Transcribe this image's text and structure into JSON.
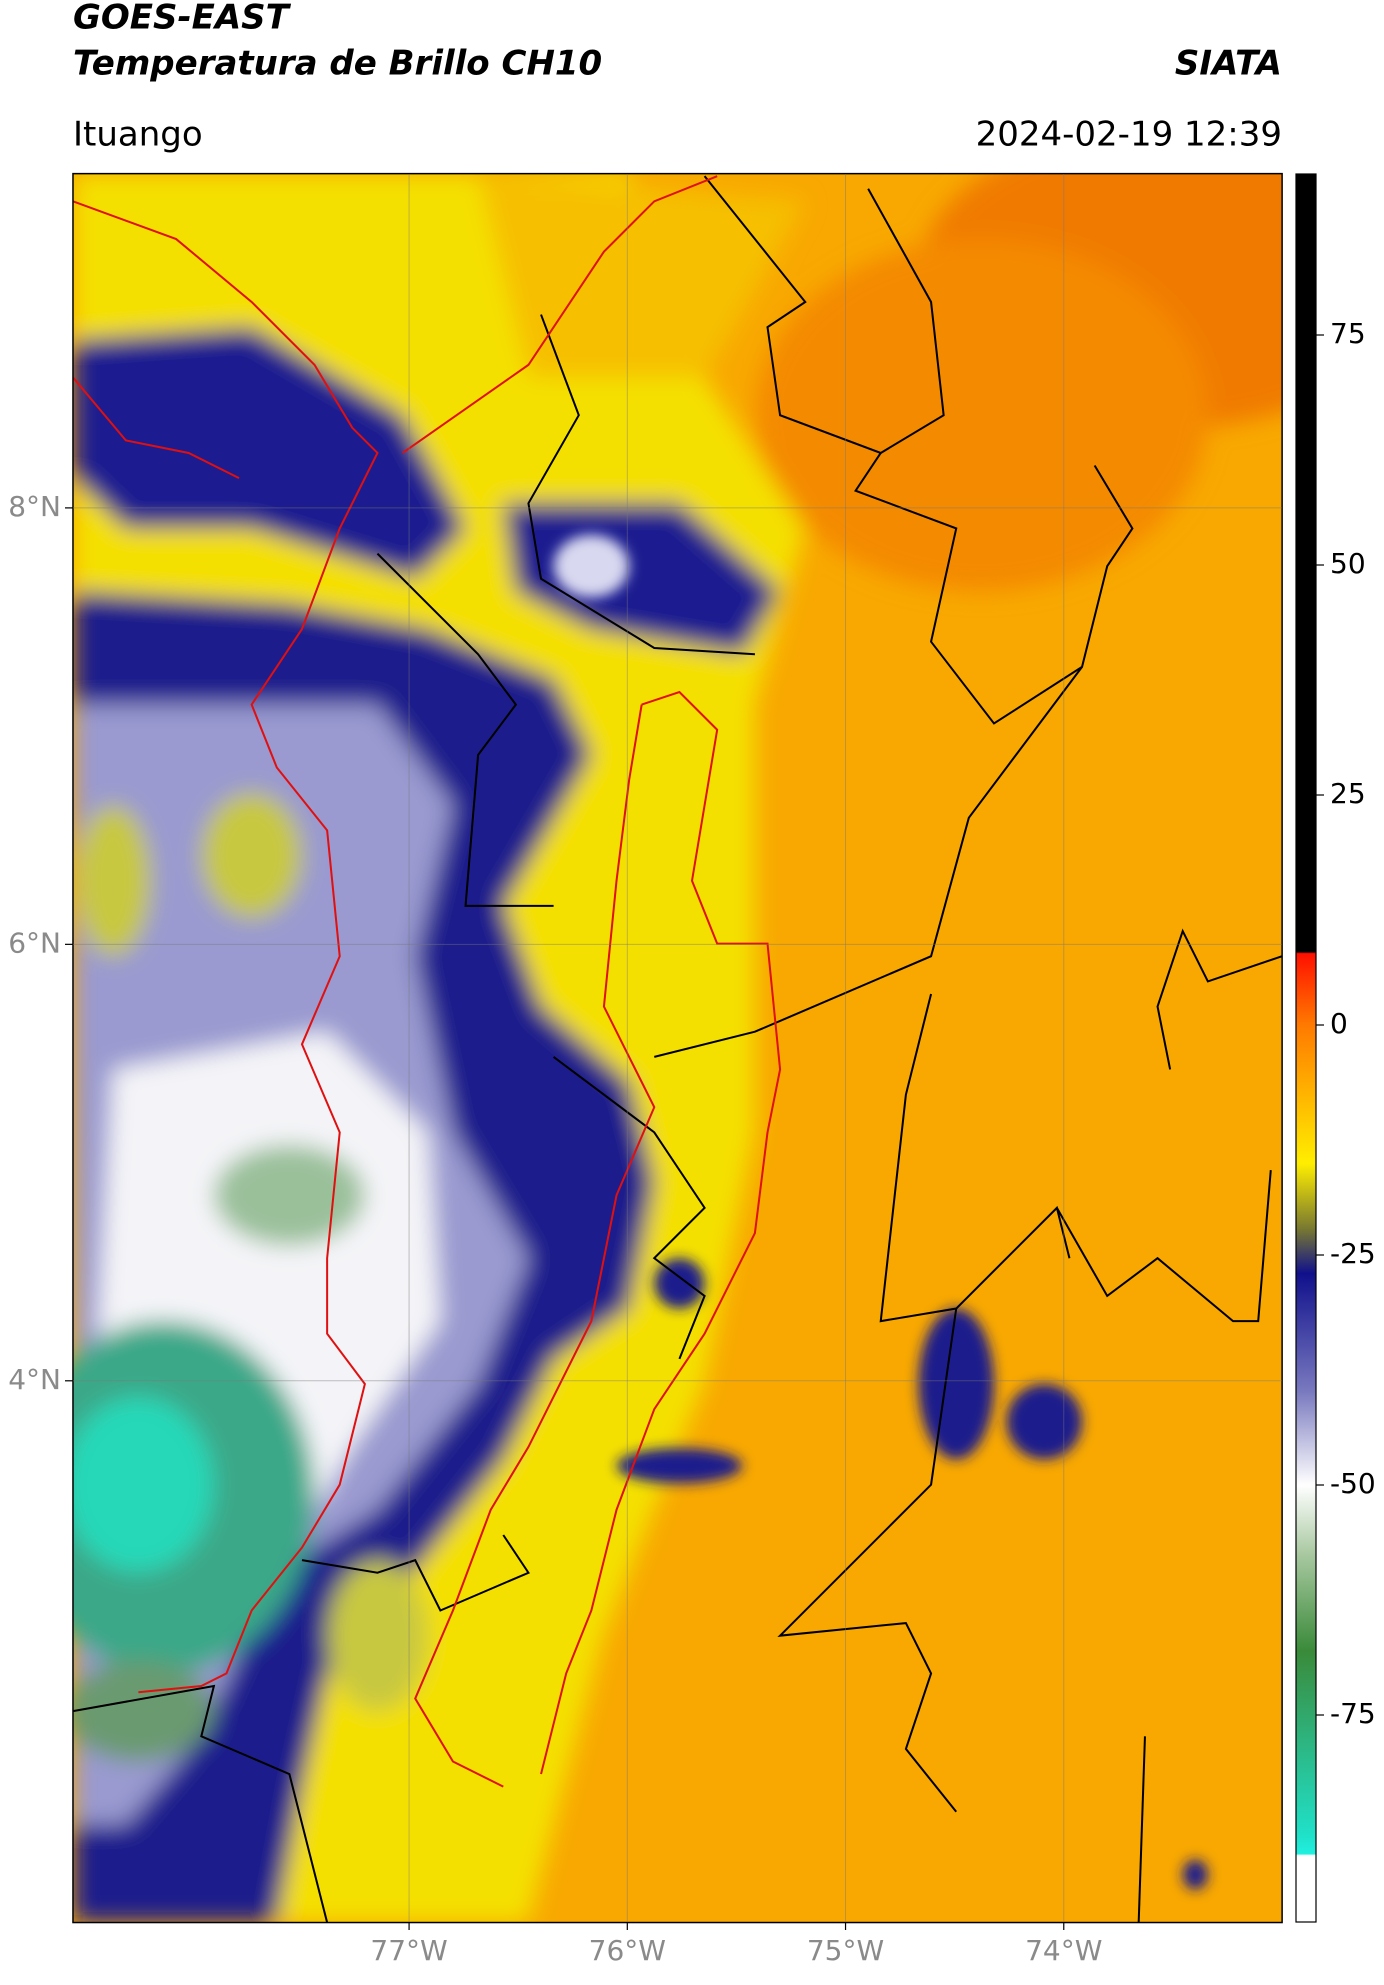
{
  "header": {
    "title": "GOES-EAST",
    "subtitle": "Temperatura de Brillo CH10",
    "credit": "SIATA",
    "location": "Ituango",
    "timestamp": "2024-02-19 12:39"
  },
  "map": {
    "xlim": [
      -78.54,
      -73.0
    ],
    "ylim": [
      1.52,
      9.53
    ],
    "xticks": [
      {
        "value": -77,
        "label": "77°W"
      },
      {
        "value": -76,
        "label": "76°W"
      },
      {
        "value": -75,
        "label": "75°W"
      },
      {
        "value": -74,
        "label": "74°W"
      }
    ],
    "yticks": [
      {
        "value": 8,
        "label": "8°N"
      },
      {
        "value": 6,
        "label": "6°N"
      },
      {
        "value": 4,
        "label": "4°N"
      }
    ],
    "grid": true
  },
  "colorbar": {
    "lim": [
      -97.5,
      92.5
    ],
    "ticks": [
      75,
      50,
      25,
      0,
      -25,
      -50,
      -75
    ]
  }
}
